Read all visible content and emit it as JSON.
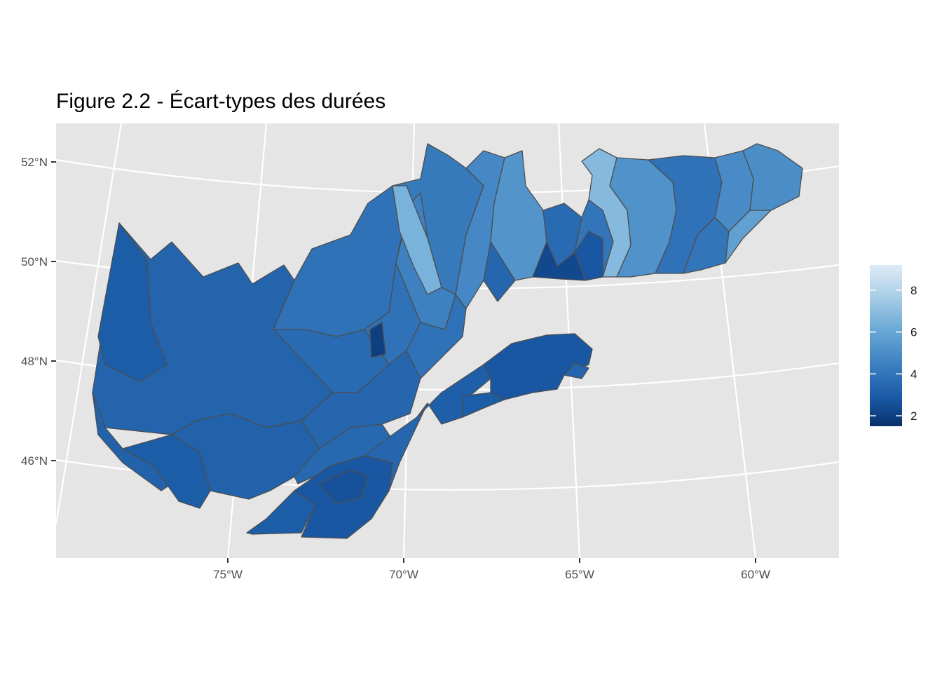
{
  "figure": {
    "title": "Figure 2.2 - Écart-types des durées"
  },
  "axes": {
    "latitude_labels": [
      "52°N",
      "50°N",
      "48°N",
      "46°N"
    ],
    "longitude_labels": [
      "75°W",
      "70°W",
      "65°W",
      "60°W"
    ]
  },
  "legend": {
    "title": "",
    "min": 1.5,
    "max": 9.2,
    "tick_values": [
      2,
      4,
      6,
      8
    ],
    "tick_labels": [
      "2",
      "4",
      "6",
      "8"
    ],
    "color_low": "#08306b",
    "color_high": "#deebf7"
  },
  "colors": {
    "panel_background": "#e5e5e5",
    "gridlines": "#ffffff",
    "region_border": "#4d4d4d"
  },
  "map_data": {
    "variable": "standard deviation of durations",
    "regions": [
      {
        "id": "west-main",
        "value": 3.3
      },
      {
        "id": "abitibi-west",
        "value": 3.0
      },
      {
        "id": "west-sw",
        "value": 3.2
      },
      {
        "id": "outaouais",
        "value": 3.0
      },
      {
        "id": "central-mauricie",
        "value": 3.2
      },
      {
        "id": "haut-st-maurice",
        "value": 3.6
      },
      {
        "id": "lac-st-jean-west",
        "value": 3.9
      },
      {
        "id": "peribonka",
        "value": 4.2
      },
      {
        "id": "mistassini",
        "value": 3.9
      },
      {
        "id": "lac-st-jean-small",
        "value": 2.0
      },
      {
        "id": "saguenay-south",
        "value": 3.4
      },
      {
        "id": "laurentides",
        "value": 3.5
      },
      {
        "id": "charlevoix",
        "value": 3.9
      },
      {
        "id": "monts-valin",
        "value": 4.5
      },
      {
        "id": "manicouagan-west",
        "value": 6.5
      },
      {
        "id": "manicouagan-east",
        "value": 4.8
      },
      {
        "id": "outardes",
        "value": 5.3
      },
      {
        "id": "betsiamites",
        "value": 3.4
      },
      {
        "id": "cote-nord-west-small",
        "value": 3.6
      },
      {
        "id": "cote-nord-dark",
        "value": 2.3
      },
      {
        "id": "sept-iles-west",
        "value": 4.0
      },
      {
        "id": "sept-iles-dark",
        "value": 2.8
      },
      {
        "id": "moisie",
        "value": 6.8
      },
      {
        "id": "minganie-west",
        "value": 5.2
      },
      {
        "id": "romaine",
        "value": 3.9
      },
      {
        "id": "minganie-mid",
        "value": 4.0
      },
      {
        "id": "natashquan",
        "value": 4.9
      },
      {
        "id": "basse-cote-nord",
        "value": 5.0
      },
      {
        "id": "anticosti-coast-strip",
        "value": 5.8
      },
      {
        "id": "estrie",
        "value": 2.8
      },
      {
        "id": "beauce",
        "value": 2.6
      },
      {
        "id": "monteregie",
        "value": 3.0
      },
      {
        "id": "chaudiere-appalaches",
        "value": 3.4
      },
      {
        "id": "bas-st-laurent",
        "value": 3.1
      },
      {
        "id": "gaspesie",
        "value": 2.8
      },
      {
        "id": "gaspe-tip",
        "value": 3.3
      },
      {
        "id": "matapedia",
        "value": 3.0
      }
    ]
  }
}
